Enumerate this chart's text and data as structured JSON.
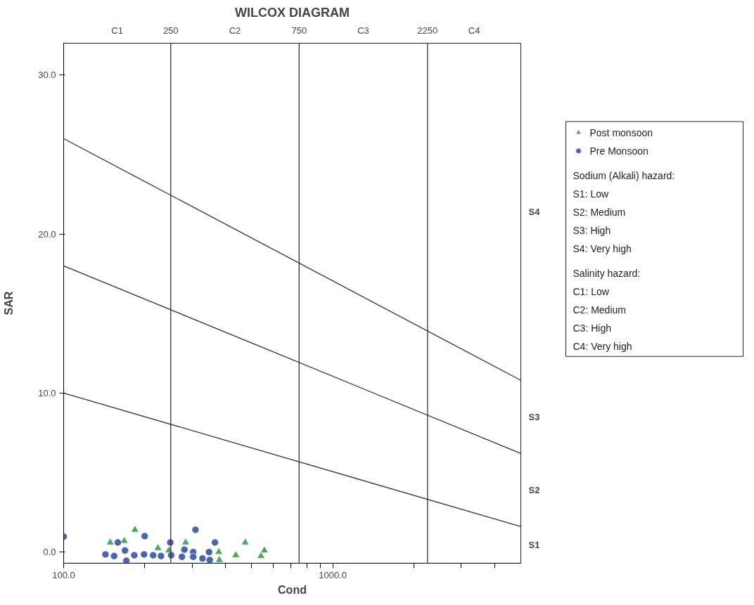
{
  "chart_data": {
    "type": "scatter",
    "title": "WILCOX DIAGRAM",
    "xlabel": "Cond",
    "ylabel": "SAR",
    "log": "x",
    "grid": false,
    "legend": "top right",
    "xlim": [
      100,
      5000
    ],
    "xticks": [
      {
        "value": 100,
        "label": "100.0"
      },
      {
        "value": 200,
        "label": null
      },
      {
        "value": 300,
        "label": null
      },
      {
        "value": 400,
        "label": null
      },
      {
        "value": 500,
        "label": null
      },
      {
        "value": 600,
        "label": null
      },
      {
        "value": 700,
        "label": null
      },
      {
        "value": 800,
        "label": null
      },
      {
        "value": 900,
        "label": null
      },
      {
        "value": 1000,
        "label": "1000.0"
      },
      {
        "value": 2000,
        "label": null
      },
      {
        "value": 3000,
        "label": null
      },
      {
        "value": 4000,
        "label": null
      }
    ],
    "ylim": [
      -0.7,
      32
    ],
    "yticks": [
      {
        "value": 0,
        "label": "0.0"
      },
      {
        "value": 10,
        "label": "10.0"
      },
      {
        "value": 20,
        "label": "20.0"
      },
      {
        "value": 30,
        "label": "30.0"
      }
    ],
    "ref_lines": [
      {
        "axis": "x",
        "value": 250,
        "label": "250",
        "color": "#333333"
      },
      {
        "axis": "x",
        "value": 750,
        "label": "750",
        "color": "#333333"
      },
      {
        "axis": "x",
        "value": 2250,
        "label": "2250",
        "color": "#333333"
      }
    ],
    "series": [
      {
        "name": "Post monsoon",
        "marker": "triangle",
        "color": "#4caa5a",
        "x": [
          184,
          149,
          168,
          224,
          284,
          377,
          379,
          436,
          473,
          557,
          541,
          246
        ],
        "values": [
          1.4,
          0.6,
          0.7,
          0.25,
          0.6,
          0.0,
          -0.5,
          -0.2,
          0.6,
          0.1,
          -0.25,
          0.1
        ]
      },
      {
        "name": "Pre Monsoon",
        "marker": "circle",
        "color": "#4a64ad",
        "x": [
          100,
          200,
          309,
          249,
          365,
          159,
          169,
          143,
          154,
          171,
          183,
          199,
          215,
          230,
          251,
          281,
          303,
          303,
          328,
          347,
          349,
          275
        ],
        "values": [
          0.97,
          1.0,
          1.4,
          0.6,
          0.6,
          0.6,
          0.1,
          -0.15,
          -0.25,
          -0.55,
          -0.2,
          -0.15,
          -0.2,
          -0.25,
          -0.2,
          0.15,
          0.0,
          -0.3,
          -0.4,
          0.0,
          -0.5,
          -0.3
        ]
      },
      {
        "type": "line",
        "line_style": "solid",
        "color": "#333333",
        "x": [
          100,
          5000
        ],
        "values": [
          10,
          1.6
        ]
      },
      {
        "type": "line",
        "line_style": "solid",
        "color": "#333333",
        "x": [
          100,
          5000
        ],
        "values": [
          18,
          6.2
        ]
      },
      {
        "type": "line",
        "line_style": "solid",
        "color": "#333333",
        "x": [
          100,
          5000
        ],
        "values": [
          26,
          10.8
        ]
      }
    ],
    "annotations": [
      "C1",
      "C2",
      "C3",
      "C4",
      "S1",
      "S2",
      "S3",
      "S4",
      "Sodium (Alkali) hazard:",
      "S1: Low",
      "S2: Medium",
      "S3: High",
      "S4: Very high",
      "Salinity hazard:",
      "C1: Low",
      "C2: Medium",
      "C3: High",
      "C4: Very high"
    ]
  }
}
